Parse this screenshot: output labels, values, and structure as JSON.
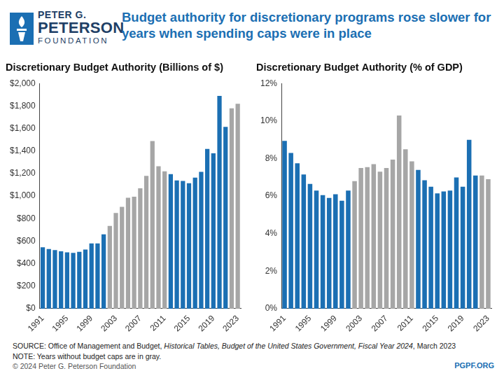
{
  "header": {
    "logo": [
      "PETER G.",
      "PETERSON",
      "FOUNDATION"
    ],
    "title": "Budget authority for discretionary programs rose slower for years when spending caps were in place"
  },
  "footer": {
    "source": [
      {
        "text": "SOURCE: Office of Management and Budget, ",
        "italic": false
      },
      {
        "text": "Historical Tables, Budget of the United States Government, Fiscal Year 2024",
        "italic": true
      },
      {
        "text": ", March 2023",
        "italic": false
      }
    ],
    "note": "NOTE: Years without budget caps are in gray.",
    "copyright": "© 2024 Peter G. Peterson Foundation",
    "site": "PGPF.ORG"
  },
  "chart_data": [
    {
      "type": "bar",
      "title": "Discretionary Budget Authority (Billions of $)",
      "categories": [
        "1991",
        null,
        null,
        null,
        "1995",
        null,
        null,
        null,
        "1999",
        null,
        null,
        null,
        "2003",
        null,
        null,
        null,
        "2007",
        null,
        null,
        null,
        "2011",
        null,
        null,
        null,
        "2015",
        null,
        null,
        null,
        "2019",
        null,
        null,
        null,
        "2023"
      ],
      "values": [
        545,
        530,
        520,
        510,
        500,
        495,
        505,
        525,
        580,
        580,
        660,
        735,
        850,
        905,
        985,
        995,
        1070,
        1180,
        1490,
        1265,
        1220,
        1195,
        1140,
        1135,
        1115,
        1165,
        1215,
        1420,
        1380,
        1890,
        1615,
        1780,
        1820
      ],
      "colors": [
        "#1b6fb3",
        "#1b6fb3",
        "#1b6fb3",
        "#1b6fb3",
        "#1b6fb3",
        "#1b6fb3",
        "#1b6fb3",
        "#1b6fb3",
        "#1b6fb3",
        "#1b6fb3",
        "#1b6fb3",
        "#a6a6a6",
        "#a6a6a6",
        "#a6a6a6",
        "#a6a6a6",
        "#a6a6a6",
        "#a6a6a6",
        "#a6a6a6",
        "#a6a6a6",
        "#a6a6a6",
        "#a6a6a6",
        "#1b6fb3",
        "#1b6fb3",
        "#1b6fb3",
        "#1b6fb3",
        "#1b6fb3",
        "#1b6fb3",
        "#1b6fb3",
        "#1b6fb3",
        "#1b6fb3",
        "#1b6fb3",
        "#a6a6a6",
        "#a6a6a6"
      ],
      "ylim": [
        0,
        2000
      ],
      "yticks": [
        {
          "value": 0,
          "label": "$0"
        },
        {
          "value": 200,
          "label": "$200"
        },
        {
          "value": 400,
          "label": "$400"
        },
        {
          "value": 600,
          "label": "$600"
        },
        {
          "value": 800,
          "label": "$800"
        },
        {
          "value": 1000,
          "label": "$1,000"
        },
        {
          "value": 1200,
          "label": "$1,200"
        },
        {
          "value": 1400,
          "label": "$1,400"
        },
        {
          "value": 1600,
          "label": "$1,600"
        },
        {
          "value": 1800,
          "label": "$1,800"
        },
        {
          "value": 2000,
          "label": "$2,000"
        }
      ],
      "grid": false
    },
    {
      "type": "bar",
      "title": "Discretionary Budget Authority (% of GDP)",
      "categories": [
        "1991",
        null,
        null,
        null,
        "1995",
        null,
        null,
        null,
        "1999",
        null,
        null,
        null,
        "2003",
        null,
        null,
        null,
        "2007",
        null,
        null,
        null,
        "2011",
        null,
        null,
        null,
        "2015",
        null,
        null,
        null,
        "2019",
        null,
        null,
        null,
        "2023"
      ],
      "values": [
        8.95,
        8.3,
        7.75,
        7.15,
        6.65,
        6.3,
        6.05,
        5.9,
        6.1,
        5.75,
        6.3,
        6.8,
        7.5,
        7.55,
        7.7,
        7.3,
        7.5,
        7.95,
        10.3,
        8.5,
        7.85,
        7.4,
        6.85,
        6.5,
        6.15,
        6.25,
        6.3,
        7.0,
        6.5,
        9.0,
        7.1,
        7.1,
        6.9
      ],
      "colors": [
        "#1b6fb3",
        "#1b6fb3",
        "#1b6fb3",
        "#1b6fb3",
        "#1b6fb3",
        "#1b6fb3",
        "#1b6fb3",
        "#1b6fb3",
        "#1b6fb3",
        "#1b6fb3",
        "#1b6fb3",
        "#a6a6a6",
        "#a6a6a6",
        "#a6a6a6",
        "#a6a6a6",
        "#a6a6a6",
        "#a6a6a6",
        "#a6a6a6",
        "#a6a6a6",
        "#a6a6a6",
        "#a6a6a6",
        "#1b6fb3",
        "#1b6fb3",
        "#1b6fb3",
        "#1b6fb3",
        "#1b6fb3",
        "#1b6fb3",
        "#1b6fb3",
        "#1b6fb3",
        "#1b6fb3",
        "#1b6fb3",
        "#a6a6a6",
        "#a6a6a6"
      ],
      "ylim": [
        0,
        12
      ],
      "yticks": [
        {
          "value": 0,
          "label": "0%"
        },
        {
          "value": 2,
          "label": "2%"
        },
        {
          "value": 4,
          "label": "4%"
        },
        {
          "value": 6,
          "label": "6%"
        },
        {
          "value": 8,
          "label": "8%"
        },
        {
          "value": 10,
          "label": "10%"
        },
        {
          "value": 12,
          "label": "12%"
        }
      ],
      "grid": false
    }
  ]
}
